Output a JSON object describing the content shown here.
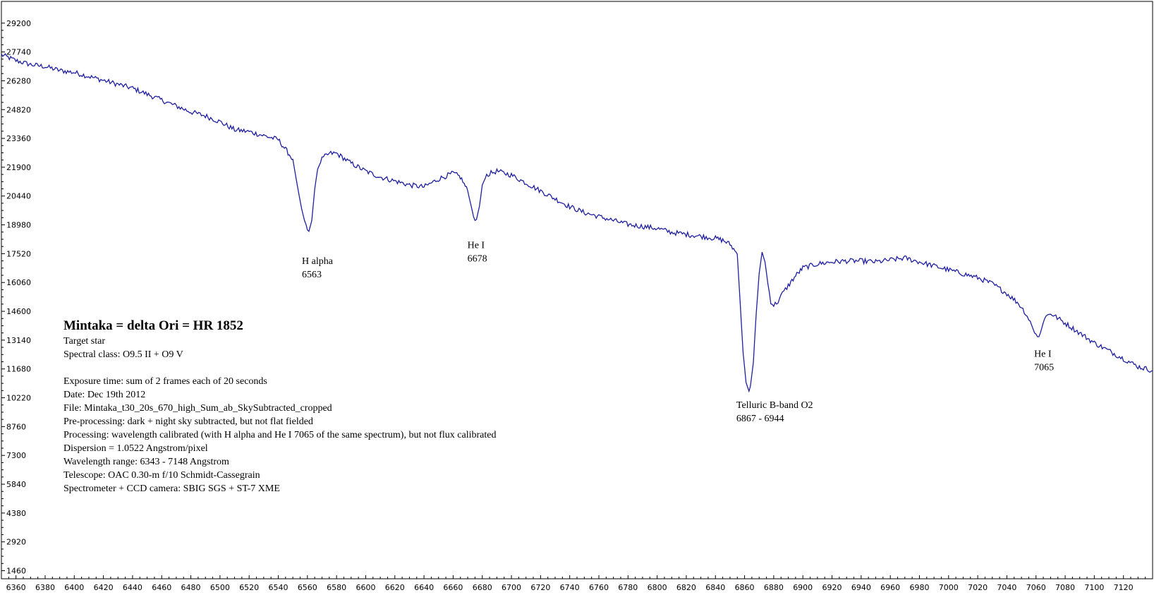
{
  "chart_data": {
    "type": "line",
    "title": "",
    "xlabel": "",
    "ylabel": "",
    "xlim": [
      6350,
      7140
    ],
    "ylim": [
      1050,
      30300
    ],
    "x_ticks": [
      6360,
      6380,
      6400,
      6420,
      6440,
      6460,
      6480,
      6500,
      6520,
      6540,
      6560,
      6580,
      6600,
      6620,
      6640,
      6660,
      6680,
      6700,
      6720,
      6740,
      6760,
      6780,
      6800,
      6820,
      6840,
      6860,
      6880,
      6900,
      6920,
      6940,
      6960,
      6980,
      7000,
      7020,
      7040,
      7060,
      7080,
      7100,
      7120
    ],
    "y_ticks": [
      1460,
      2920,
      4380,
      5840,
      7300,
      8760,
      10220,
      11680,
      13140,
      14600,
      16060,
      17520,
      18980,
      20440,
      21900,
      23360,
      24820,
      26280,
      27740,
      29200
    ],
    "grid": false,
    "line_color": "#1f1fa0",
    "series": [
      {
        "x": [
          6350,
          6360,
          6370,
          6380,
          6390,
          6400,
          6410,
          6420,
          6430,
          6440,
          6450,
          6460,
          6470,
          6480,
          6490,
          6500,
          6510,
          6520,
          6530,
          6540,
          6545,
          6550,
          6553,
          6556,
          6559,
          6561,
          6563,
          6565,
          6567,
          6570,
          6573,
          6576,
          6580,
          6590,
          6600,
          6610,
          6620,
          6630,
          6640,
          6650,
          6660,
          6665,
          6670,
          6674,
          6676,
          6678,
          6680,
          6683,
          6686,
          6690,
          6700,
          6710,
          6720,
          6730,
          6740,
          6750,
          6760,
          6770,
          6780,
          6790,
          6800,
          6810,
          6820,
          6830,
          6840,
          6845,
          6850,
          6855,
          6857,
          6859,
          6861,
          6863,
          6864,
          6866,
          6868,
          6870,
          6872,
          6874,
          6876,
          6878,
          6880,
          6883,
          6886,
          6890,
          6895,
          6900,
          6910,
          6920,
          6930,
          6940,
          6950,
          6960,
          6970,
          6980,
          6990,
          7000,
          7010,
          7020,
          7030,
          7040,
          7048,
          7052,
          7056,
          7059,
          7061,
          7063,
          7066,
          7070,
          7080,
          7090,
          7100,
          7110,
          7120,
          7130,
          7140
        ],
        "y": [
          27600,
          27300,
          27100,
          27000,
          26800,
          26700,
          26500,
          26300,
          26100,
          25900,
          25600,
          25300,
          25000,
          24700,
          24500,
          24200,
          23800,
          23700,
          23500,
          23300,
          22800,
          22300,
          21000,
          19800,
          18900,
          18650,
          19200,
          20800,
          21800,
          22300,
          22500,
          22600,
          22600,
          22100,
          21700,
          21400,
          21200,
          21000,
          20900,
          21300,
          21600,
          21400,
          20700,
          19400,
          19250,
          19900,
          21000,
          21500,
          21600,
          21700,
          21500,
          21100,
          20700,
          20300,
          19900,
          19600,
          19400,
          19200,
          19000,
          18900,
          18800,
          18600,
          18500,
          18400,
          18300,
          18200,
          18000,
          17500,
          15000,
          12500,
          11000,
          10550,
          10800,
          12000,
          14500,
          16500,
          17600,
          17100,
          16000,
          15100,
          14900,
          15100,
          15500,
          15900,
          16400,
          16800,
          17000,
          17100,
          17150,
          17150,
          17100,
          17200,
          17300,
          17100,
          16900,
          16700,
          16500,
          16300,
          16000,
          15500,
          15000,
          14600,
          14100,
          13500,
          13300,
          13500,
          14300,
          14500,
          14000,
          13500,
          13000,
          12600,
          12200,
          11800,
          11600
        ]
      }
    ],
    "annotations": [
      {
        "lines": [
          "H alpha",
          "6563"
        ],
        "x": 6563,
        "y": 17000
      },
      {
        "lines": [
          "He I",
          "6678"
        ],
        "x": 6678,
        "y": 17800
      },
      {
        "lines": [
          "Telluric B-band O2",
          "6867 - 6944"
        ],
        "x": 6865,
        "y": 9700
      },
      {
        "lines": [
          "He I",
          "7065"
        ],
        "x": 7065,
        "y": 12300
      }
    ],
    "info": {
      "title": "Mintaka = delta Ori = HR 1852",
      "lines_a": [
        "Target star",
        "Spectral class: O9.5 II + O9 V"
      ],
      "lines_b": [
        "Exposure time: sum of 2 frames each of 20 seconds",
        "Date: Dec 19th 2012",
        "File: Mintaka_t30_20s_670_high_Sum_ab_SkySubtracted_cropped",
        "Pre-processing: dark + night sky subtracted, but not flat fielded",
        "Processing: wavelength calibrated (with H alpha and He I 7065 of the same spectrum), but not flux calibrated",
        "Dispersion = 1.0522 Angstrom/pixel",
        "Wavelength range: 6343 - 7148 Angstrom",
        "Telescope: OAC 0.30-m  f/10 Schmidt-Cassegrain",
        "Spectrometer + CCD camera: SBIG SGS + ST-7 XME"
      ]
    }
  }
}
